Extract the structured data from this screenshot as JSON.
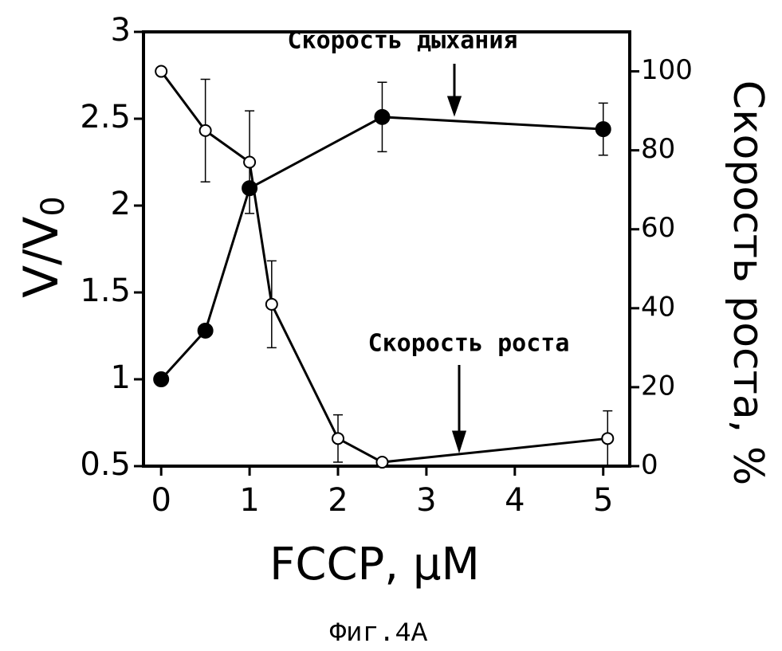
{
  "chart_data": {
    "type": "line",
    "xlabel": "FCCP, μM",
    "ylabel": {
      "main": "V/V",
      "sub": "0"
    },
    "y2label": "Скорость роста, %",
    "caption": "Фиг.4A",
    "annotations": [
      "Скорость дыхания",
      "Скорость роста"
    ],
    "xlim": [
      -0.2,
      5.3
    ],
    "xticks": [
      0,
      1,
      2,
      3,
      4,
      5
    ],
    "ylim": [
      0.5,
      3
    ],
    "yticks": [
      0.5,
      1,
      1.5,
      2,
      2.5,
      3
    ],
    "y2lim": [
      0,
      110
    ],
    "y2ticks": [
      0,
      20,
      40,
      60,
      80,
      100
    ],
    "series": [
      {
        "name": "Скорость дыхания",
        "color": "#000000",
        "marker": "filled",
        "axis": "y",
        "x": [
          0,
          0.5,
          1,
          2.5,
          5
        ],
        "values": [
          1.0,
          1.28,
          2.1,
          2.51,
          2.44
        ],
        "errors": [
          null,
          null,
          null,
          0.2,
          0.15
        ]
      },
      {
        "name": "Скорость роста",
        "color": "#000000",
        "marker": "open",
        "axis": "y2",
        "x": [
          0,
          0.5,
          1,
          1.25,
          2,
          2.5,
          5.05
        ],
        "values": [
          100,
          85,
          77,
          41,
          7,
          1,
          7
        ],
        "errors": [
          null,
          13,
          13,
          11,
          6,
          null,
          7
        ]
      }
    ]
  }
}
